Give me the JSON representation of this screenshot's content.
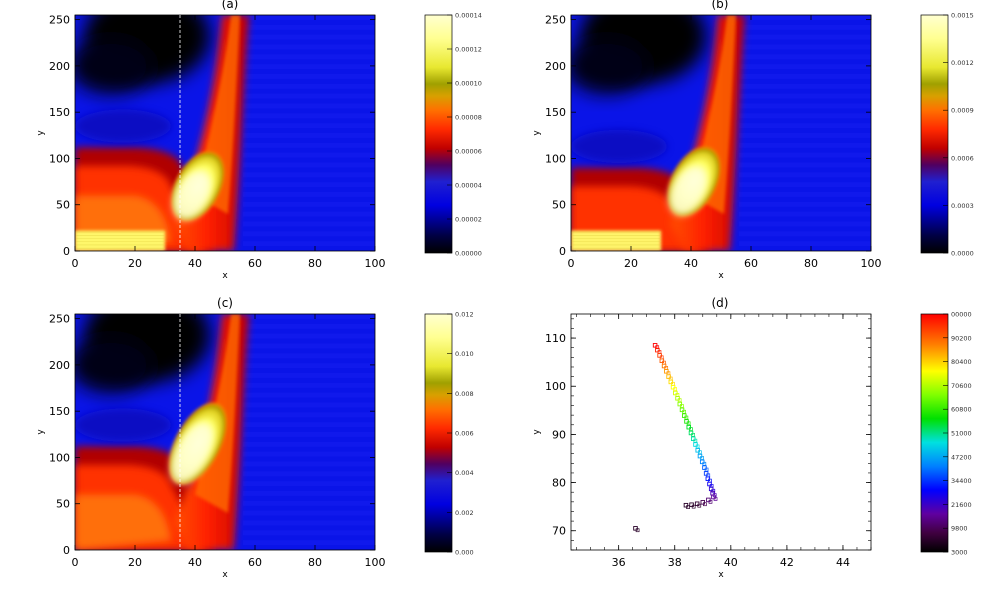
{
  "chart_data": [
    {
      "type": "heatmap",
      "title": "(a)",
      "xlabel": "x",
      "ylabel": "y",
      "xlim": [
        0,
        100
      ],
      "ylim": [
        0,
        255
      ],
      "xticks": [
        "0",
        "20",
        "40",
        "60",
        "80",
        "100"
      ],
      "yticks": [
        "0",
        "50",
        "100",
        "150",
        "200",
        "250"
      ],
      "colorbar": {
        "range": [
          0,
          0.00014
        ],
        "ticks": [
          "0.00000",
          "0.00002",
          "0.00004",
          "0.00006",
          "0.00008",
          "0.00010",
          "0.00012",
          "0.00014"
        ]
      },
      "guide_x": 35
    },
    {
      "type": "heatmap",
      "title": "(b)",
      "xlabel": "x",
      "ylabel": "y",
      "xlim": [
        0,
        100
      ],
      "ylim": [
        0,
        255
      ],
      "xticks": [
        "0",
        "20",
        "40",
        "60",
        "80",
        "100"
      ],
      "yticks": [
        "0",
        "50",
        "100",
        "150",
        "200",
        "250"
      ],
      "colorbar": {
        "range": [
          0,
          0.0015
        ],
        "ticks": [
          "0.0000",
          "0.0003",
          "0.0006",
          "0.0009",
          "0.0012",
          "0.0015"
        ]
      }
    },
    {
      "type": "heatmap",
      "title": "(c)",
      "xlabel": "x",
      "ylabel": "y",
      "xlim": [
        0,
        100
      ],
      "ylim": [
        0,
        255
      ],
      "xticks": [
        "0",
        "20",
        "40",
        "60",
        "80",
        "100"
      ],
      "yticks": [
        "0",
        "50",
        "100",
        "150",
        "200",
        "250"
      ],
      "colorbar": {
        "range": [
          0,
          0.012
        ],
        "ticks": [
          "0.000",
          "0.002",
          "0.004",
          "0.006",
          "0.008",
          "0.010",
          "0.012"
        ]
      },
      "guide_x": 35
    },
    {
      "type": "scatter",
      "title": "(d)",
      "xlabel": "x",
      "ylabel": "y",
      "xlim": [
        34.3,
        45
      ],
      "ylim": [
        66,
        115
      ],
      "xticks": [
        "36",
        "38",
        "40",
        "42",
        "44"
      ],
      "yticks": [
        "70",
        "80",
        "90",
        "100",
        "110"
      ],
      "colorbar": {
        "range": [
          3000,
          100000
        ],
        "ticks": [
          "3000",
          "9800",
          "21600",
          "34400",
          "47200",
          "51000",
          "60800",
          "70600",
          "80400",
          "90200",
          "00000"
        ]
      },
      "points": [
        {
          "x": 37.3,
          "y": 108.5
        },
        {
          "x": 37.38,
          "y": 107.5
        },
        {
          "x": 37.46,
          "y": 106.4
        },
        {
          "x": 37.54,
          "y": 105.3
        },
        {
          "x": 37.62,
          "y": 104.2
        },
        {
          "x": 37.7,
          "y": 103.1
        },
        {
          "x": 37.78,
          "y": 102.0
        },
        {
          "x": 37.86,
          "y": 100.9
        },
        {
          "x": 37.94,
          "y": 99.8
        },
        {
          "x": 38.02,
          "y": 98.6
        },
        {
          "x": 38.1,
          "y": 97.5
        },
        {
          "x": 38.18,
          "y": 96.3
        },
        {
          "x": 38.26,
          "y": 95.1
        },
        {
          "x": 38.34,
          "y": 93.9
        },
        {
          "x": 38.42,
          "y": 92.7
        },
        {
          "x": 38.5,
          "y": 91.5
        },
        {
          "x": 38.58,
          "y": 90.3
        },
        {
          "x": 38.66,
          "y": 89.1
        },
        {
          "x": 38.74,
          "y": 87.9
        },
        {
          "x": 38.82,
          "y": 86.7
        },
        {
          "x": 38.9,
          "y": 85.5
        },
        {
          "x": 38.98,
          "y": 84.3
        },
        {
          "x": 39.06,
          "y": 83.1
        },
        {
          "x": 39.12,
          "y": 81.9
        },
        {
          "x": 39.18,
          "y": 80.8
        },
        {
          "x": 39.24,
          "y": 79.7
        },
        {
          "x": 39.3,
          "y": 78.7
        },
        {
          "x": 39.35,
          "y": 77.8
        },
        {
          "x": 39.38,
          "y": 77.0
        },
        {
          "x": 39.2,
          "y": 76.4
        },
        {
          "x": 39.0,
          "y": 75.9
        },
        {
          "x": 38.8,
          "y": 75.6
        },
        {
          "x": 38.6,
          "y": 75.4
        },
        {
          "x": 38.4,
          "y": 75.3
        },
        {
          "x": 36.6,
          "y": 70.5
        }
      ]
    }
  ]
}
